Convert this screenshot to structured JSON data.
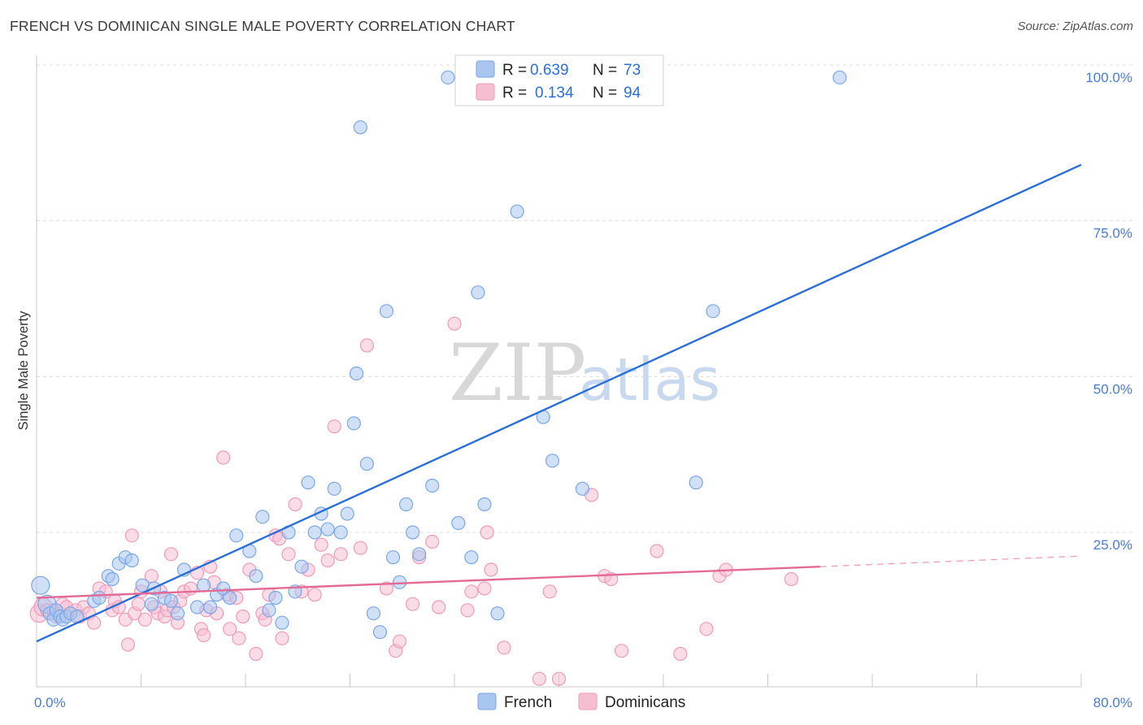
{
  "title": "FRENCH VS DOMINICAN SINGLE MALE POVERTY CORRELATION CHART",
  "source": "Source: ZipAtlas.com",
  "watermark": {
    "zip": "ZIP",
    "atlas": "atlas"
  },
  "legend_top": [
    {
      "r_label": "R =",
      "r_value": "0.639",
      "n_label": "N =",
      "n_value": "73"
    },
    {
      "r_label": "R =",
      "r_value": "0.134",
      "n_label": "N =",
      "n_value": "94"
    }
  ],
  "chart_data": {
    "type": "scatter",
    "title": "FRENCH VS DOMINICAN SINGLE MALE POVERTY CORRELATION CHART",
    "xlabel": "",
    "ylabel": "Single Male Poverty",
    "xlim": [
      0,
      80
    ],
    "ylim": [
      0,
      100
    ],
    "x_tick_labels": [
      "0.0%",
      "80.0%"
    ],
    "y_tick_labels": [
      "25.0%",
      "50.0%",
      "75.0%",
      "100.0%"
    ],
    "y_tick_values": [
      25,
      50,
      75,
      100
    ],
    "grid": "horizontal dashed",
    "legend_position": "top-center",
    "series": [
      {
        "name": "French",
        "color": "#7aa6e6",
        "fill": "#a9c6f0",
        "trend_color": "#2b6fd6",
        "R": 0.639,
        "N": 73,
        "trend": {
          "x": [
            0,
            80
          ],
          "y": [
            7.5,
            84
          ]
        },
        "points": [
          [
            0.3,
            16.5
          ],
          [
            0.8,
            13.5
          ],
          [
            1.0,
            12
          ],
          [
            1.3,
            11
          ],
          [
            1.5,
            12.5
          ],
          [
            1.8,
            11.5
          ],
          [
            2.0,
            11
          ],
          [
            2.3,
            11.5
          ],
          [
            2.6,
            12
          ],
          [
            3.1,
            11.5
          ],
          [
            4.4,
            14
          ],
          [
            4.8,
            14.5
          ],
          [
            5.5,
            18
          ],
          [
            5.8,
            17.5
          ],
          [
            6.3,
            20
          ],
          [
            6.8,
            21
          ],
          [
            7.3,
            20.5
          ],
          [
            8.1,
            16.5
          ],
          [
            8.8,
            13.5
          ],
          [
            9.0,
            16
          ],
          [
            9.8,
            14.5
          ],
          [
            10.3,
            14
          ],
          [
            10.8,
            12
          ],
          [
            11.3,
            19
          ],
          [
            12.3,
            13
          ],
          [
            12.8,
            16.5
          ],
          [
            13.3,
            13
          ],
          [
            13.8,
            15
          ],
          [
            14.3,
            16
          ],
          [
            14.8,
            14.5
          ],
          [
            15.3,
            24.5
          ],
          [
            16.3,
            22
          ],
          [
            16.8,
            18
          ],
          [
            17.3,
            27.5
          ],
          [
            17.8,
            12.5
          ],
          [
            18.3,
            14.5
          ],
          [
            18.8,
            10.5
          ],
          [
            19.3,
            25
          ],
          [
            19.8,
            15.5
          ],
          [
            20.3,
            19.5
          ],
          [
            20.8,
            33
          ],
          [
            21.3,
            25
          ],
          [
            21.8,
            28
          ],
          [
            22.3,
            25.5
          ],
          [
            22.8,
            32
          ],
          [
            23.3,
            25
          ],
          [
            23.8,
            28
          ],
          [
            24.3,
            42.5
          ],
          [
            24.5,
            50.5
          ],
          [
            24.8,
            90
          ],
          [
            25.3,
            36
          ],
          [
            25.8,
            12
          ],
          [
            26.3,
            9
          ],
          [
            26.8,
            60.5
          ],
          [
            27.3,
            21
          ],
          [
            27.8,
            17
          ],
          [
            28.3,
            29.5
          ],
          [
            28.8,
            25
          ],
          [
            29.3,
            21.5
          ],
          [
            30.3,
            32.5
          ],
          [
            31.5,
            98
          ],
          [
            32.3,
            26.5
          ],
          [
            33.3,
            21
          ],
          [
            33.8,
            63.5
          ],
          [
            34.3,
            29.5
          ],
          [
            35.3,
            12
          ],
          [
            36.8,
            76.5
          ],
          [
            38.8,
            43.5
          ],
          [
            39.5,
            36.5
          ],
          [
            41.8,
            32
          ],
          [
            50.5,
            33
          ],
          [
            51.8,
            60.5
          ],
          [
            61.5,
            98
          ]
        ]
      },
      {
        "name": "Dominicans",
        "color": "#ee9ab8",
        "fill": "#f6bfd1",
        "trend_color": "#e36a95",
        "R": 0.134,
        "N": 94,
        "trend": {
          "x": [
            0,
            60
          ],
          "y": [
            14.5,
            19.5
          ]
        },
        "trend_dashed": {
          "x": [
            60,
            80
          ],
          "y": [
            19.5,
            21.2
          ]
        },
        "points": [
          [
            0.2,
            12
          ],
          [
            0.5,
            13
          ],
          [
            0.8,
            12.5
          ],
          [
            1.0,
            12
          ],
          [
            1.3,
            12.5
          ],
          [
            1.5,
            11.5
          ],
          [
            1.8,
            12
          ],
          [
            2.0,
            13.5
          ],
          [
            2.3,
            13
          ],
          [
            2.6,
            12
          ],
          [
            3.0,
            12.5
          ],
          [
            3.3,
            11.5
          ],
          [
            3.6,
            13
          ],
          [
            4.0,
            12
          ],
          [
            4.4,
            10.5
          ],
          [
            4.8,
            16
          ],
          [
            5.3,
            15.5
          ],
          [
            5.8,
            12.5
          ],
          [
            6.0,
            14
          ],
          [
            6.3,
            13
          ],
          [
            6.8,
            11
          ],
          [
            7.0,
            7
          ],
          [
            7.3,
            24.5
          ],
          [
            7.5,
            12
          ],
          [
            7.8,
            13.5
          ],
          [
            8.0,
            15.5
          ],
          [
            8.3,
            11
          ],
          [
            8.8,
            18
          ],
          [
            9.0,
            13
          ],
          [
            9.3,
            12
          ],
          [
            9.5,
            15.5
          ],
          [
            9.8,
            11.5
          ],
          [
            10.0,
            12.5
          ],
          [
            10.3,
            21.5
          ],
          [
            10.5,
            13
          ],
          [
            10.8,
            10.5
          ],
          [
            11.0,
            14
          ],
          [
            11.3,
            15.5
          ],
          [
            11.8,
            16
          ],
          [
            12.3,
            18.5
          ],
          [
            12.6,
            9.5
          ],
          [
            12.8,
            8.5
          ],
          [
            13.0,
            12.5
          ],
          [
            13.3,
            19.5
          ],
          [
            13.6,
            17
          ],
          [
            13.8,
            12
          ],
          [
            14.3,
            37
          ],
          [
            14.6,
            15
          ],
          [
            14.8,
            9.5
          ],
          [
            15.3,
            14.5
          ],
          [
            15.5,
            8
          ],
          [
            15.8,
            11.5
          ],
          [
            16.3,
            19
          ],
          [
            16.8,
            5.5
          ],
          [
            17.3,
            12
          ],
          [
            17.5,
            11
          ],
          [
            17.8,
            15
          ],
          [
            18.3,
            24.5
          ],
          [
            18.6,
            24
          ],
          [
            18.8,
            8
          ],
          [
            19.3,
            21.5
          ],
          [
            19.8,
            29.5
          ],
          [
            20.3,
            15.5
          ],
          [
            20.8,
            19
          ],
          [
            21.3,
            15
          ],
          [
            21.8,
            23
          ],
          [
            22.3,
            20.5
          ],
          [
            22.8,
            42
          ],
          [
            23.3,
            21.5
          ],
          [
            24.8,
            22.5
          ],
          [
            25.3,
            55
          ],
          [
            26.8,
            16
          ],
          [
            27.5,
            6
          ],
          [
            27.8,
            7.5
          ],
          [
            28.8,
            13.5
          ],
          [
            29.3,
            21
          ],
          [
            30.3,
            23.5
          ],
          [
            30.8,
            13
          ],
          [
            32.0,
            58.5
          ],
          [
            33.0,
            12.5
          ],
          [
            33.3,
            15.5
          ],
          [
            34.3,
            16
          ],
          [
            34.5,
            25
          ],
          [
            34.8,
            19
          ],
          [
            35.8,
            6.5
          ],
          [
            38.5,
            1.5
          ],
          [
            39.3,
            15.5
          ],
          [
            40.0,
            1.5
          ],
          [
            42.5,
            31
          ],
          [
            43.5,
            18
          ],
          [
            44.0,
            17.5
          ],
          [
            44.8,
            6
          ],
          [
            47.5,
            22
          ],
          [
            49.3,
            5.5
          ],
          [
            51.3,
            9.5
          ],
          [
            52.3,
            18
          ],
          [
            52.8,
            19
          ],
          [
            57.8,
            17.5
          ]
        ]
      }
    ]
  },
  "bottom_legend": [
    {
      "label": "French"
    },
    {
      "label": "Dominicans"
    }
  ]
}
